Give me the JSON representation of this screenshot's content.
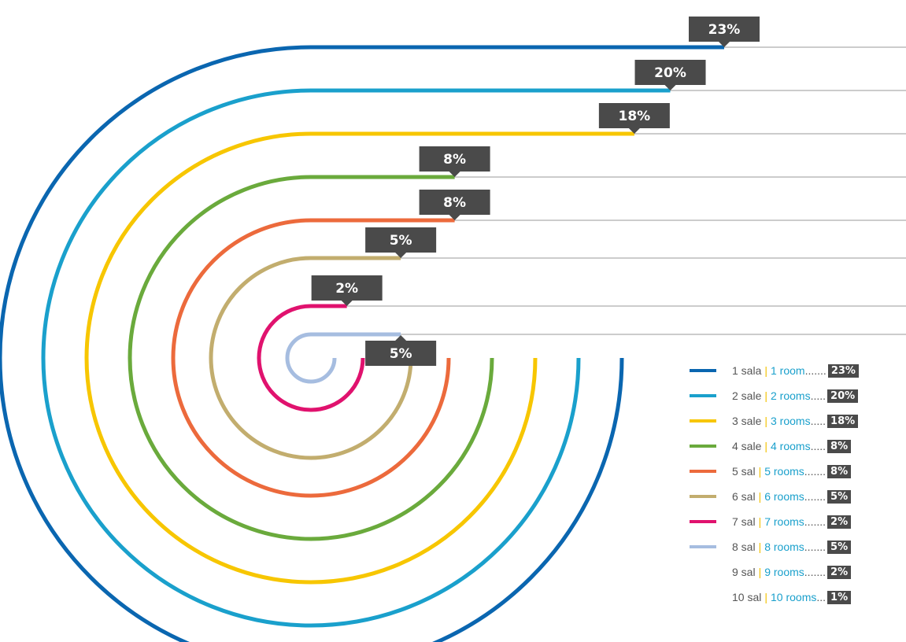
{
  "chart_data": {
    "type": "radial-bar",
    "title": "",
    "series": [
      {
        "it": "1 sala",
        "en": "1 room",
        "dots": ".......",
        "value": 23,
        "label": "23%",
        "color": "#0a66b0"
      },
      {
        "it": "2 sale",
        "en": "2 rooms",
        "dots": ".....",
        "value": 20,
        "label": "20%",
        "color": "#1aa0cc"
      },
      {
        "it": "3 sale",
        "en": "3 rooms",
        "dots": ".....",
        "value": 18,
        "label": "18%",
        "color": "#f7c600"
      },
      {
        "it": "4 sale",
        "en": "4 rooms",
        "dots": ".....",
        "value": 8,
        "label": "8%",
        "color": "#6aaa3c"
      },
      {
        "it": "5 sal",
        "en": "5 rooms",
        "dots": ".......",
        "value": 8,
        "label": "8%",
        "color": "#ec6a3c"
      },
      {
        "it": "6 sal",
        "en": "6 rooms",
        "dots": ".......",
        "value": 5,
        "label": "5%",
        "color": "#c2ad6e"
      },
      {
        "it": "7 sal",
        "en": "7 rooms",
        "dots": ".......",
        "value": 2,
        "label": "2%",
        "color": "#e0126e"
      },
      {
        "it": "8 sal",
        "en": "8 rooms",
        "dots": ".......",
        "value": 5,
        "label": "5%",
        "color": "#a6bde0"
      },
      {
        "it": "9 sal",
        "en": "9 rooms",
        "dots": ".......",
        "value": 2,
        "label": "2%",
        "color": null
      },
      {
        "it": "10 sal",
        "en": "10 rooms",
        "dots": "...",
        "value": 1,
        "label": "1%",
        "color": null
      }
    ],
    "legend_position": "bottom-right",
    "label_style": "dark-callout-badge"
  }
}
